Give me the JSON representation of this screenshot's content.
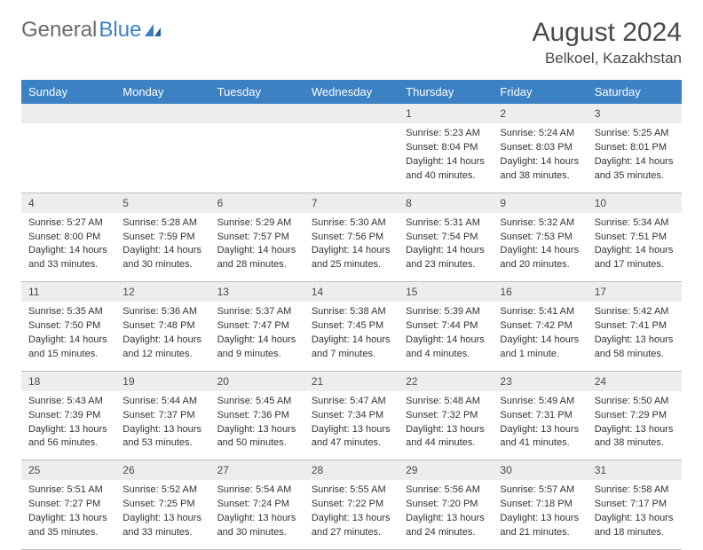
{
  "logo": {
    "word1": "General",
    "word2": "Blue"
  },
  "title": "August 2024",
  "location": "Belkoel, Kazakhstan",
  "colors": {
    "header_bg": "#3b81c4",
    "header_text": "#ffffff",
    "daynum_bg": "#ededed",
    "border": "#bfbfbf",
    "body_text": "#333333",
    "title_text": "#4a4a4a"
  },
  "fonts": {
    "title_size": 30,
    "location_size": 17,
    "dayhead_size": 13,
    "body_size": 11
  },
  "dayHeaders": [
    "Sunday",
    "Monday",
    "Tuesday",
    "Wednesday",
    "Thursday",
    "Friday",
    "Saturday"
  ],
  "weeks": [
    [
      null,
      null,
      null,
      null,
      {
        "n": "1",
        "sr": "Sunrise: 5:23 AM",
        "ss": "Sunset: 8:04 PM",
        "dl1": "Daylight: 14 hours",
        "dl2": "and 40 minutes."
      },
      {
        "n": "2",
        "sr": "Sunrise: 5:24 AM",
        "ss": "Sunset: 8:03 PM",
        "dl1": "Daylight: 14 hours",
        "dl2": "and 38 minutes."
      },
      {
        "n": "3",
        "sr": "Sunrise: 5:25 AM",
        "ss": "Sunset: 8:01 PM",
        "dl1": "Daylight: 14 hours",
        "dl2": "and 35 minutes."
      }
    ],
    [
      {
        "n": "4",
        "sr": "Sunrise: 5:27 AM",
        "ss": "Sunset: 8:00 PM",
        "dl1": "Daylight: 14 hours",
        "dl2": "and 33 minutes."
      },
      {
        "n": "5",
        "sr": "Sunrise: 5:28 AM",
        "ss": "Sunset: 7:59 PM",
        "dl1": "Daylight: 14 hours",
        "dl2": "and 30 minutes."
      },
      {
        "n": "6",
        "sr": "Sunrise: 5:29 AM",
        "ss": "Sunset: 7:57 PM",
        "dl1": "Daylight: 14 hours",
        "dl2": "and 28 minutes."
      },
      {
        "n": "7",
        "sr": "Sunrise: 5:30 AM",
        "ss": "Sunset: 7:56 PM",
        "dl1": "Daylight: 14 hours",
        "dl2": "and 25 minutes."
      },
      {
        "n": "8",
        "sr": "Sunrise: 5:31 AM",
        "ss": "Sunset: 7:54 PM",
        "dl1": "Daylight: 14 hours",
        "dl2": "and 23 minutes."
      },
      {
        "n": "9",
        "sr": "Sunrise: 5:32 AM",
        "ss": "Sunset: 7:53 PM",
        "dl1": "Daylight: 14 hours",
        "dl2": "and 20 minutes."
      },
      {
        "n": "10",
        "sr": "Sunrise: 5:34 AM",
        "ss": "Sunset: 7:51 PM",
        "dl1": "Daylight: 14 hours",
        "dl2": "and 17 minutes."
      }
    ],
    [
      {
        "n": "11",
        "sr": "Sunrise: 5:35 AM",
        "ss": "Sunset: 7:50 PM",
        "dl1": "Daylight: 14 hours",
        "dl2": "and 15 minutes."
      },
      {
        "n": "12",
        "sr": "Sunrise: 5:36 AM",
        "ss": "Sunset: 7:48 PM",
        "dl1": "Daylight: 14 hours",
        "dl2": "and 12 minutes."
      },
      {
        "n": "13",
        "sr": "Sunrise: 5:37 AM",
        "ss": "Sunset: 7:47 PM",
        "dl1": "Daylight: 14 hours",
        "dl2": "and 9 minutes."
      },
      {
        "n": "14",
        "sr": "Sunrise: 5:38 AM",
        "ss": "Sunset: 7:45 PM",
        "dl1": "Daylight: 14 hours",
        "dl2": "and 7 minutes."
      },
      {
        "n": "15",
        "sr": "Sunrise: 5:39 AM",
        "ss": "Sunset: 7:44 PM",
        "dl1": "Daylight: 14 hours",
        "dl2": "and 4 minutes."
      },
      {
        "n": "16",
        "sr": "Sunrise: 5:41 AM",
        "ss": "Sunset: 7:42 PM",
        "dl1": "Daylight: 14 hours",
        "dl2": "and 1 minute."
      },
      {
        "n": "17",
        "sr": "Sunrise: 5:42 AM",
        "ss": "Sunset: 7:41 PM",
        "dl1": "Daylight: 13 hours",
        "dl2": "and 58 minutes."
      }
    ],
    [
      {
        "n": "18",
        "sr": "Sunrise: 5:43 AM",
        "ss": "Sunset: 7:39 PM",
        "dl1": "Daylight: 13 hours",
        "dl2": "and 56 minutes."
      },
      {
        "n": "19",
        "sr": "Sunrise: 5:44 AM",
        "ss": "Sunset: 7:37 PM",
        "dl1": "Daylight: 13 hours",
        "dl2": "and 53 minutes."
      },
      {
        "n": "20",
        "sr": "Sunrise: 5:45 AM",
        "ss": "Sunset: 7:36 PM",
        "dl1": "Daylight: 13 hours",
        "dl2": "and 50 minutes."
      },
      {
        "n": "21",
        "sr": "Sunrise: 5:47 AM",
        "ss": "Sunset: 7:34 PM",
        "dl1": "Daylight: 13 hours",
        "dl2": "and 47 minutes."
      },
      {
        "n": "22",
        "sr": "Sunrise: 5:48 AM",
        "ss": "Sunset: 7:32 PM",
        "dl1": "Daylight: 13 hours",
        "dl2": "and 44 minutes."
      },
      {
        "n": "23",
        "sr": "Sunrise: 5:49 AM",
        "ss": "Sunset: 7:31 PM",
        "dl1": "Daylight: 13 hours",
        "dl2": "and 41 minutes."
      },
      {
        "n": "24",
        "sr": "Sunrise: 5:50 AM",
        "ss": "Sunset: 7:29 PM",
        "dl1": "Daylight: 13 hours",
        "dl2": "and 38 minutes."
      }
    ],
    [
      {
        "n": "25",
        "sr": "Sunrise: 5:51 AM",
        "ss": "Sunset: 7:27 PM",
        "dl1": "Daylight: 13 hours",
        "dl2": "and 35 minutes."
      },
      {
        "n": "26",
        "sr": "Sunrise: 5:52 AM",
        "ss": "Sunset: 7:25 PM",
        "dl1": "Daylight: 13 hours",
        "dl2": "and 33 minutes."
      },
      {
        "n": "27",
        "sr": "Sunrise: 5:54 AM",
        "ss": "Sunset: 7:24 PM",
        "dl1": "Daylight: 13 hours",
        "dl2": "and 30 minutes."
      },
      {
        "n": "28",
        "sr": "Sunrise: 5:55 AM",
        "ss": "Sunset: 7:22 PM",
        "dl1": "Daylight: 13 hours",
        "dl2": "and 27 minutes."
      },
      {
        "n": "29",
        "sr": "Sunrise: 5:56 AM",
        "ss": "Sunset: 7:20 PM",
        "dl1": "Daylight: 13 hours",
        "dl2": "and 24 minutes."
      },
      {
        "n": "30",
        "sr": "Sunrise: 5:57 AM",
        "ss": "Sunset: 7:18 PM",
        "dl1": "Daylight: 13 hours",
        "dl2": "and 21 minutes."
      },
      {
        "n": "31",
        "sr": "Sunrise: 5:58 AM",
        "ss": "Sunset: 7:17 PM",
        "dl1": "Daylight: 13 hours",
        "dl2": "and 18 minutes."
      }
    ]
  ]
}
